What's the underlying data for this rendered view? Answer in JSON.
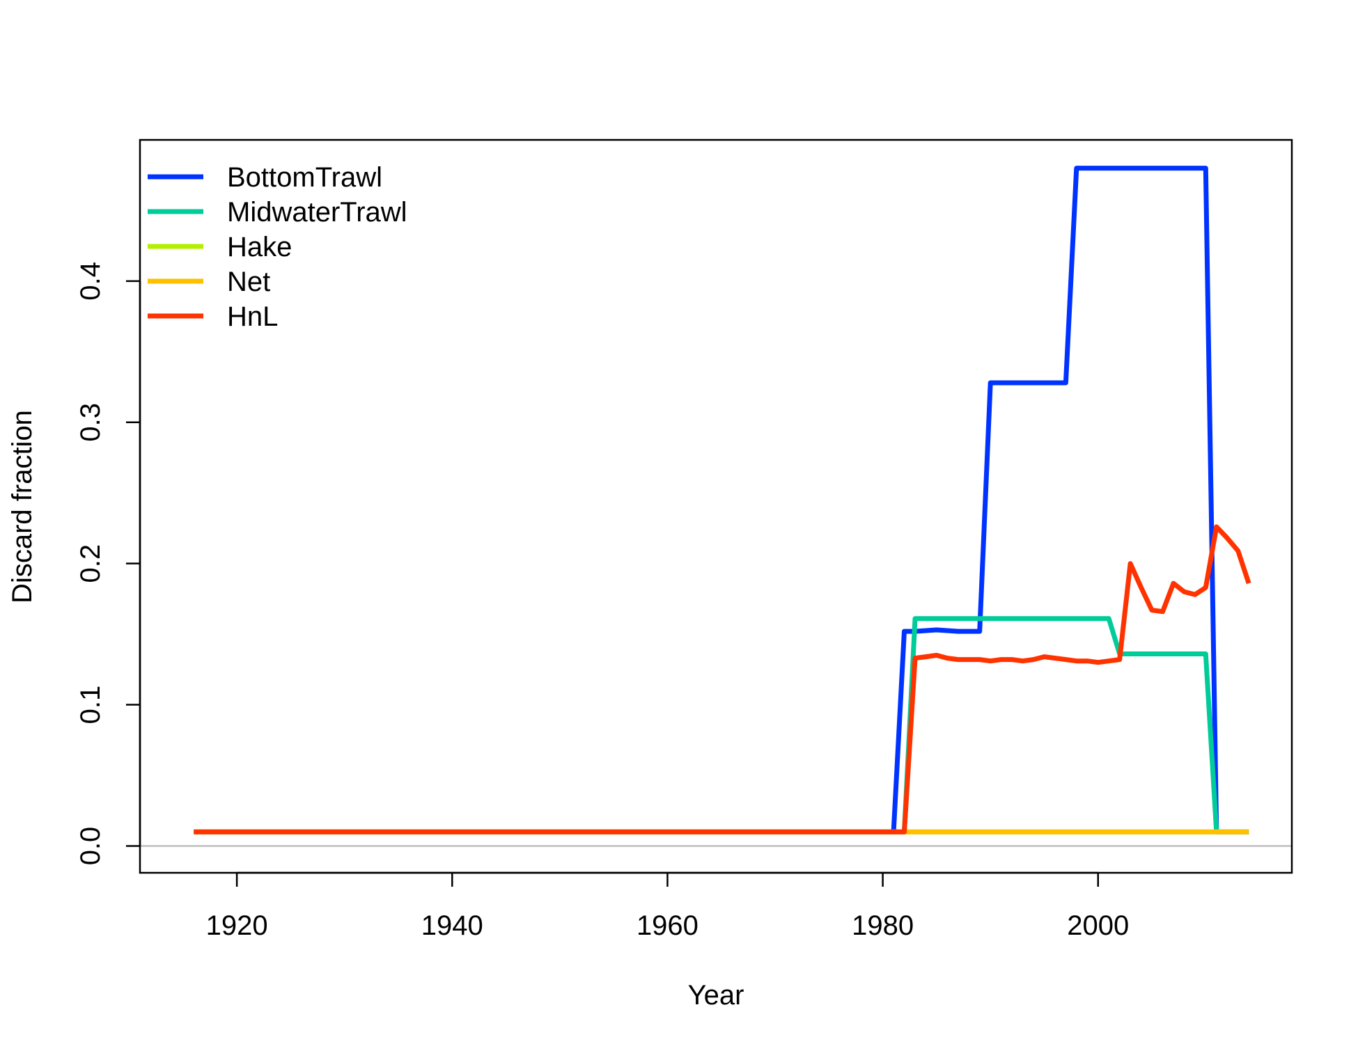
{
  "chart_data": {
    "type": "line",
    "title": "",
    "xlabel": "Year",
    "ylabel": "Discard fraction",
    "xlim": [
      1911,
      2018
    ],
    "ylim": [
      -0.019,
      0.5
    ],
    "xticks": [
      1920,
      1940,
      1960,
      1980,
      2000
    ],
    "xtick_labels": [
      "1920",
      "1940",
      "1960",
      "1980",
      "2000"
    ],
    "yticks": [
      0.0,
      0.1,
      0.2,
      0.3,
      0.4
    ],
    "ytick_labels": [
      "0.0",
      "0.1",
      "0.2",
      "0.3",
      "0.4"
    ],
    "reference_line": {
      "y": 0,
      "color": "#bebebe"
    },
    "grid": false,
    "legend_position": "top-left",
    "series": [
      {
        "name": "BottomTrawl",
        "color": "#0033ff",
        "x": [
          1916,
          1981,
          1982,
          1983,
          1985,
          1987,
          1989,
          1990,
          1992,
          1995,
          1997,
          1998,
          2002,
          2006,
          2010,
          2011,
          2014
        ],
        "y": [
          0.01,
          0.01,
          0.152,
          0.152,
          0.153,
          0.152,
          0.152,
          0.328,
          0.328,
          0.328,
          0.328,
          0.48,
          0.48,
          0.48,
          0.48,
          0.01,
          0.01
        ]
      },
      {
        "name": "MidwaterTrawl",
        "color": "#00cc99",
        "x": [
          1916,
          1982,
          1983,
          1990,
          2001,
          2002,
          2006,
          2010,
          2011,
          2014
        ],
        "y": [
          0.01,
          0.01,
          0.161,
          0.161,
          0.161,
          0.136,
          0.136,
          0.136,
          0.01,
          0.01
        ]
      },
      {
        "name": "Hake",
        "color": "#b3f000",
        "x": [
          1916,
          2014
        ],
        "y": [
          0.01,
          0.01
        ]
      },
      {
        "name": "Net",
        "color": "#ffc000",
        "x": [
          1916,
          2014
        ],
        "y": [
          0.01,
          0.01
        ]
      },
      {
        "name": "HnL",
        "color": "#ff3300",
        "x": [
          1916,
          1982,
          1983,
          1984,
          1985,
          1986,
          1987,
          1988,
          1989,
          1990,
          1991,
          1992,
          1993,
          1994,
          1995,
          1996,
          1997,
          1998,
          1999,
          2000,
          2001,
          2002,
          2003,
          2004,
          2005,
          2006,
          2007,
          2008,
          2009,
          2010,
          2011,
          2012,
          2013,
          2014
        ],
        "y": [
          0.01,
          0.01,
          0.133,
          0.134,
          0.135,
          0.133,
          0.132,
          0.132,
          0.132,
          0.131,
          0.132,
          0.132,
          0.131,
          0.132,
          0.134,
          0.133,
          0.132,
          0.131,
          0.131,
          0.13,
          0.131,
          0.132,
          0.2,
          0.183,
          0.167,
          0.166,
          0.186,
          0.18,
          0.178,
          0.183,
          0.226,
          0.218,
          0.209,
          0.186
        ]
      }
    ]
  }
}
